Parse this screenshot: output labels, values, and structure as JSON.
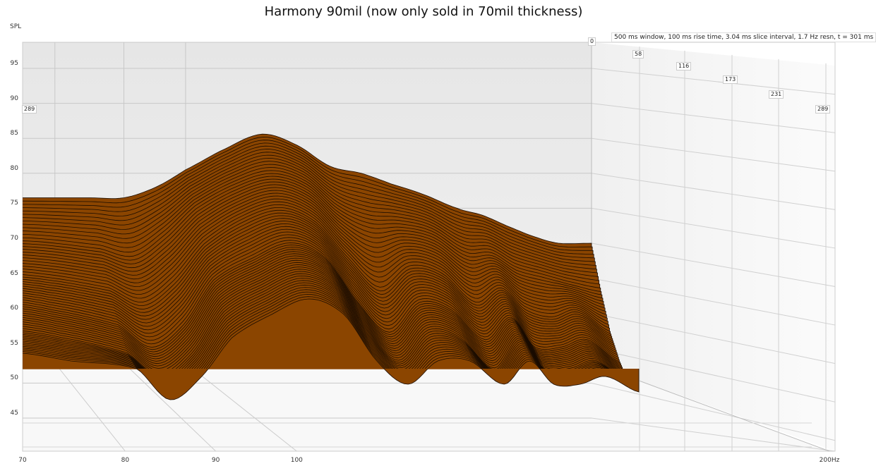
{
  "chart_data": {
    "type": "area",
    "subtype": "waterfall",
    "title": "Harmony 90mil (now only sold in 70mil thickness)",
    "ylabel": "SPL",
    "xlabel_unit": "Hz",
    "info": "500 ms window, 100 ms rise time, 3.04 ms slice interval, 1.7 Hz resn, t = 301 ms",
    "x_scale": "log",
    "xlim": [
      70,
      200
    ],
    "ylim": [
      40,
      100
    ],
    "x_ticks": [
      "70",
      "80",
      "90",
      "100",
      "200Hz"
    ],
    "y_ticks": [
      "95",
      "90",
      "85",
      "80",
      "75",
      "70",
      "65",
      "60",
      "55",
      "50",
      "45"
    ],
    "time_ticks": [
      "0",
      "58",
      "116",
      "173",
      "231",
      "289"
    ],
    "time_tick_left": "289",
    "grid": true,
    "fill_color": "#8B4500",
    "line_color": "#1a0c00",
    "freqs": [
      70,
      76,
      85,
      90,
      95,
      100,
      107,
      114,
      121,
      128,
      135,
      142,
      150,
      159,
      166,
      173,
      181,
      189,
      200
    ],
    "slices": [
      {
        "t": 0,
        "spl": [
          76.5,
          76.5,
          76.5,
          76.5,
          78,
          80.5,
          83.5,
          85.6,
          84,
          81,
          80,
          78.5,
          77,
          75,
          74,
          72.5,
          71,
          70,
          70
        ]
      },
      {
        "t": 58,
        "spl": [
          70,
          70,
          69,
          68,
          71,
          75,
          78,
          79.5,
          78,
          74,
          72,
          72,
          71,
          68,
          68,
          66,
          65,
          64,
          63
        ]
      },
      {
        "t": 116,
        "spl": [
          65,
          64.5,
          63,
          61,
          64,
          69,
          72.5,
          74,
          72,
          67,
          63,
          66,
          65,
          61,
          63,
          60,
          59,
          60,
          57
        ]
      },
      {
        "t": 173,
        "spl": [
          61,
          60,
          58,
          55,
          58,
          64,
          67,
          69,
          67,
          61,
          57,
          61,
          60,
          56,
          59,
          55,
          55,
          56,
          53
        ]
      },
      {
        "t": 231,
        "spl": [
          57,
          56,
          54,
          51,
          54,
          60,
          63,
          65,
          63,
          57,
          53,
          57,
          56,
          52,
          56,
          52,
          52,
          53,
          50
        ]
      },
      {
        "t": 289,
        "spl": [
          54,
          53,
          52,
          48,
          51,
          56,
          59,
          61,
          59,
          53,
          50,
          53,
          53,
          50,
          53,
          50,
          50,
          51,
          49
        ]
      }
    ]
  }
}
